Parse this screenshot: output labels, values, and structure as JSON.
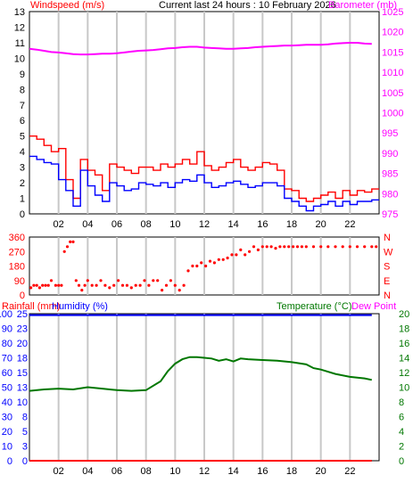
{
  "header": {
    "left_label": "Windspeed (m/s)",
    "center_label": "Current last 24 hours : 10 February 2026",
    "right_label": "Barometer (mb)"
  },
  "lower_header": {
    "rainfall_label": "Rainfall (mm)",
    "humidity_label": "Humidity (%)",
    "temperature_label": "Temperature (°C)",
    "dewpoint_label": "Dew Point"
  },
  "colors": {
    "wind_gust": "#ff0000",
    "wind_avg": "#0000ff",
    "barometer": "#ff00ff",
    "direction": "#ff0000",
    "humidity": "#0000ff",
    "temperature": "#007700",
    "rainfall": "#ff0000",
    "grid": "#c8c8c8"
  },
  "x_axis": {
    "ticks": [
      "02",
      "04",
      "06",
      "08",
      "10",
      "12",
      "14",
      "16",
      "18",
      "20",
      "22"
    ]
  },
  "chart_data": [
    {
      "type": "line",
      "name_hint": "wind_barometer",
      "y_ticks_left": [
        "0",
        "1",
        "2",
        "3",
        "4",
        "5",
        "6",
        "7",
        "8",
        "9",
        "10",
        "11",
        "12",
        "13"
      ],
      "y_ticks_right": [
        "975",
        "980",
        "985",
        "990",
        "995",
        "1000",
        "1005",
        "1010",
        "1015",
        "1020",
        "1025"
      ],
      "ylim_left": [
        0,
        13
      ],
      "ylim_right": [
        975,
        1025
      ],
      "x_hours": [
        0,
        0.5,
        1,
        1.5,
        2,
        2.5,
        3,
        3.5,
        4,
        4.5,
        5,
        5.5,
        6,
        6.5,
        7,
        7.5,
        8,
        8.5,
        9,
        9.5,
        10,
        10.5,
        11,
        11.5,
        12,
        12.5,
        13,
        13.5,
        14,
        14.5,
        15,
        15.5,
        16,
        16.5,
        17,
        17.5,
        18,
        18.5,
        19,
        19.5,
        20,
        20.5,
        21,
        21.5,
        22,
        22.5,
        23,
        23.5
      ],
      "series": [
        {
          "name": "Barometer",
          "axis": "right",
          "values": [
            1015.8,
            1015.6,
            1015.3,
            1015.0,
            1014.9,
            1014.7,
            1014.5,
            1014.4,
            1014.4,
            1014.5,
            1014.6,
            1014.6,
            1014.7,
            1014.9,
            1015.1,
            1015.3,
            1015.4,
            1015.5,
            1015.7,
            1015.9,
            1016.0,
            1016.2,
            1016.3,
            1016.3,
            1016.1,
            1016.0,
            1015.9,
            1015.8,
            1015.8,
            1015.9,
            1016.0,
            1016.2,
            1016.3,
            1016.4,
            1016.5,
            1016.6,
            1016.6,
            1016.7,
            1016.8,
            1016.8,
            1016.8,
            1016.9,
            1017.1,
            1017.2,
            1017.3,
            1017.3,
            1017.1,
            1017.0
          ]
        },
        {
          "name": "Gust",
          "axis": "left",
          "values": [
            5,
            4.8,
            4.4,
            4,
            4.2,
            2.2,
            1,
            3.5,
            2.8,
            2.5,
            1.5,
            3.2,
            3,
            2.8,
            2.6,
            3,
            3,
            2.8,
            3.2,
            3,
            3.2,
            3.5,
            3.2,
            4,
            3.1,
            2.8,
            3,
            3.3,
            3.5,
            3,
            2.8,
            3,
            3.3,
            3.2,
            2.8,
            1.6,
            1.5,
            1,
            0.8,
            1,
            1.2,
            1.4,
            1,
            1.5,
            1.2,
            1.5,
            1.4,
            1.6
          ]
        },
        {
          "name": "Average",
          "axis": "left",
          "values": [
            3.7,
            3.5,
            3.3,
            3.2,
            2.2,
            1.5,
            0.5,
            2.8,
            1.8,
            1.2,
            0.8,
            2,
            1.8,
            1.5,
            1.6,
            2,
            1.9,
            1.8,
            2,
            1.7,
            2,
            2.2,
            2.1,
            2.5,
            2,
            1.7,
            1.8,
            2,
            2.1,
            1.9,
            1.7,
            1.8,
            2,
            2,
            1.8,
            1,
            0.8,
            0.5,
            0.2,
            0.5,
            0.6,
            0.8,
            0.5,
            0.8,
            0.6,
            0.8,
            0.8,
            0.9
          ]
        }
      ]
    },
    {
      "type": "scatter",
      "name_hint": "wind_direction",
      "y_ticks_left": [
        "0",
        "90",
        "180",
        "270",
        "360"
      ],
      "y_ticks_right": [
        "N",
        "E",
        "S",
        "W",
        "N"
      ],
      "ylim": [
        0,
        360
      ],
      "points": [
        [
          0.1,
          45
        ],
        [
          0.3,
          60
        ],
        [
          0.5,
          60
        ],
        [
          0.7,
          45
        ],
        [
          0.9,
          60
        ],
        [
          1.1,
          60
        ],
        [
          1.3,
          60
        ],
        [
          1.5,
          90
        ],
        [
          1.8,
          60
        ],
        [
          2.0,
          60
        ],
        [
          2.2,
          60
        ],
        [
          2.4,
          270
        ],
        [
          2.6,
          300
        ],
        [
          2.8,
          330
        ],
        [
          3.0,
          330
        ],
        [
          3.2,
          90
        ],
        [
          3.4,
          60
        ],
        [
          3.6,
          30
        ],
        [
          3.8,
          60
        ],
        [
          4.0,
          90
        ],
        [
          4.3,
          60
        ],
        [
          4.6,
          60
        ],
        [
          4.9,
          90
        ],
        [
          5.2,
          60
        ],
        [
          5.5,
          45
        ],
        [
          5.8,
          60
        ],
        [
          6.1,
          90
        ],
        [
          6.4,
          60
        ],
        [
          6.7,
          60
        ],
        [
          7.0,
          45
        ],
        [
          7.3,
          60
        ],
        [
          7.6,
          60
        ],
        [
          7.9,
          90
        ],
        [
          8.2,
          60
        ],
        [
          8.5,
          90
        ],
        [
          8.8,
          90
        ],
        [
          9.1,
          30
        ],
        [
          9.4,
          60
        ],
        [
          9.7,
          90
        ],
        [
          10.0,
          60
        ],
        [
          10.3,
          30
        ],
        [
          10.6,
          60
        ],
        [
          10.9,
          150
        ],
        [
          11.2,
          180
        ],
        [
          11.5,
          180
        ],
        [
          11.8,
          200
        ],
        [
          12.1,
          180
        ],
        [
          12.4,
          210
        ],
        [
          12.7,
          200
        ],
        [
          13.0,
          220
        ],
        [
          13.3,
          220
        ],
        [
          13.6,
          230
        ],
        [
          13.9,
          250
        ],
        [
          14.2,
          250
        ],
        [
          14.5,
          280
        ],
        [
          14.8,
          250
        ],
        [
          15.1,
          270
        ],
        [
          15.4,
          300
        ],
        [
          15.7,
          280
        ],
        [
          16.0,
          300
        ],
        [
          16.3,
          300
        ],
        [
          16.6,
          300
        ],
        [
          16.9,
          290
        ],
        [
          17.2,
          300
        ],
        [
          17.5,
          300
        ],
        [
          17.8,
          300
        ],
        [
          18.1,
          300
        ],
        [
          18.4,
          300
        ],
        [
          18.7,
          300
        ],
        [
          19.0,
          300
        ],
        [
          19.5,
          300
        ],
        [
          20.0,
          300
        ],
        [
          20.5,
          300
        ],
        [
          21.0,
          300
        ],
        [
          21.5,
          300
        ],
        [
          22.0,
          300
        ],
        [
          22.5,
          300
        ],
        [
          23.0,
          300
        ],
        [
          23.5,
          300
        ],
        [
          23.8,
          300
        ]
      ]
    },
    {
      "type": "line",
      "name_hint": "rain_humidity_temperature",
      "y_ticks_left_humidity": [
        "0",
        "10",
        "20",
        "30",
        "40",
        "50",
        "60",
        "70",
        "80",
        "90",
        "100"
      ],
      "y_ticks_left_rain": [
        "0",
        "3",
        "5",
        "8",
        "10",
        "13",
        "15",
        "18",
        "20",
        "23",
        "25"
      ],
      "y_ticks_right": [
        "0",
        "2",
        "4",
        "6",
        "8",
        "10",
        "12",
        "14",
        "16",
        "18",
        "20"
      ],
      "ylim_left": [
        0,
        100
      ],
      "ylim_right": [
        0,
        20
      ],
      "x_hours": [
        0,
        1,
        2,
        3,
        4,
        5,
        6,
        7,
        8,
        9,
        9.5,
        10,
        10.5,
        11,
        11.5,
        12,
        12.5,
        13,
        13.5,
        14,
        14.5,
        15,
        16,
        17,
        18,
        19,
        19.5,
        20,
        21,
        22,
        23,
        23.5
      ],
      "series": [
        {
          "name": "Humidity",
          "axis": "left",
          "values": [
            99,
            99,
            99,
            99,
            99,
            99,
            99,
            99,
            99,
            99,
            99,
            99,
            99,
            99,
            99,
            99,
            99,
            99,
            99,
            99,
            99,
            99,
            99,
            99,
            99,
            99,
            99,
            99,
            99,
            99,
            99,
            99
          ]
        },
        {
          "name": "Temperature",
          "axis": "right",
          "values": [
            9.5,
            9.7,
            9.8,
            9.7,
            10.0,
            9.8,
            9.6,
            9.5,
            9.6,
            10.8,
            12.2,
            13.2,
            13.8,
            14.1,
            14.1,
            14.0,
            13.9,
            13.6,
            13.8,
            13.5,
            13.9,
            13.8,
            13.7,
            13.6,
            13.4,
            13.1,
            12.6,
            12.4,
            11.8,
            11.4,
            11.2,
            11.0
          ]
        },
        {
          "name": "Rainfall",
          "axis": "left",
          "values": [
            0,
            0,
            0,
            0,
            0,
            0,
            0,
            0,
            0,
            0,
            0,
            0,
            0,
            0,
            0,
            0,
            0,
            0,
            0,
            0,
            0,
            0,
            0,
            0,
            0,
            0,
            0,
            0,
            0,
            0,
            0,
            0
          ]
        }
      ]
    }
  ]
}
